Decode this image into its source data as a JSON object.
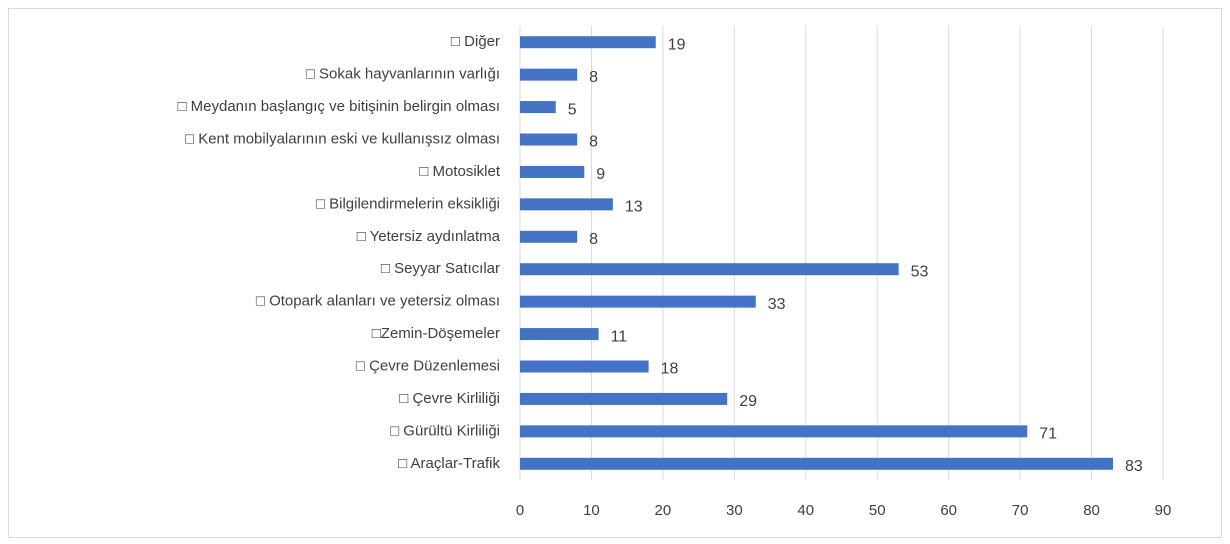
{
  "chart_data": {
    "type": "bar",
    "orientation": "horizontal",
    "categories": [
      "□ Diğer",
      "□ Sokak hayvanlarının varlığı",
      "□ Meydanın başlangıç ve bitişinin belirgin olması",
      "□ Kent mobilyalarının eski ve kullanışsız olması",
      "□ Motosiklet",
      "□ Bilgilendirmelerin eksikliği",
      "□ Yetersiz aydınlatma",
      "□ Seyyar Satıcılar",
      "□ Otopark alanları ve yetersiz olması",
      "□Zemin-Döşemeler",
      "□ Çevre Düzenlemesi",
      "□ Çevre Kirliliği",
      "□ Gürültü Kirliliği",
      "□ Araçlar-Trafik"
    ],
    "values": [
      19,
      8,
      5,
      8,
      9,
      13,
      8,
      53,
      33,
      11,
      18,
      29,
      71,
      83
    ],
    "color": "#4472c4",
    "xlim": [
      0,
      90
    ],
    "xticks": [
      0,
      10,
      20,
      30,
      40,
      50,
      60,
      70,
      80,
      90
    ],
    "grid": true,
    "data_labels": true
  }
}
